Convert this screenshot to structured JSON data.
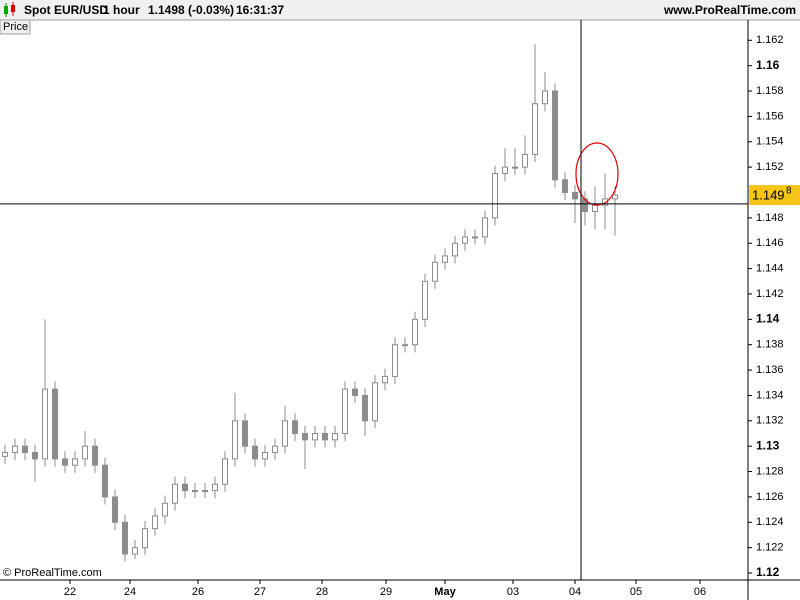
{
  "header": {
    "symbol": "Spot EUR/USD",
    "interval": "1 hour",
    "quote": "1.1498 (-0.03%)",
    "time": "16:31:37",
    "site": "www.ProRealTime.com"
  },
  "chart_data": {
    "type": "candlestick",
    "panel_label": "Price",
    "watermark": "© ProRealTime.com",
    "open": [
      1.1292,
      1.1295,
      1.13,
      1.1295,
      1.129,
      1.1345,
      1.129,
      1.1285,
      1.129,
      1.13,
      1.1285,
      1.126,
      1.124,
      1.1215,
      1.122,
      1.1235,
      1.1245,
      1.1255,
      1.127,
      1.1265,
      1.1265,
      1.1265,
      1.127,
      1.129,
      1.132,
      1.13,
      1.129,
      1.1295,
      1.13,
      1.132,
      1.131,
      1.1305,
      1.131,
      1.1305,
      1.131,
      1.1345,
      1.134,
      1.132,
      1.135,
      1.1355,
      1.138,
      1.138,
      1.14,
      1.143,
      1.1445,
      1.145,
      1.146,
      1.1465,
      1.1465,
      1.148,
      1.1515,
      1.152,
      1.152,
      1.153,
      1.157,
      1.158,
      1.151,
      1.15,
      1.1495,
      1.1485,
      1.149,
      1.1495
    ],
    "high": [
      1.1301,
      1.1306,
      1.1306,
      1.1301,
      1.14,
      1.1351,
      1.1296,
      1.1296,
      1.1312,
      1.1306,
      1.1291,
      1.1266,
      1.1246,
      1.1226,
      1.1241,
      1.1251,
      1.1261,
      1.1276,
      1.1276,
      1.1271,
      1.1271,
      1.1276,
      1.1296,
      1.1342,
      1.1326,
      1.1306,
      1.1301,
      1.1306,
      1.1332,
      1.1326,
      1.1316,
      1.1316,
      1.1316,
      1.1316,
      1.1351,
      1.1351,
      1.1346,
      1.1356,
      1.1361,
      1.1386,
      1.1386,
      1.1406,
      1.1436,
      1.1451,
      1.1456,
      1.1466,
      1.1471,
      1.1471,
      1.1486,
      1.1521,
      1.1535,
      1.1535,
      1.1545,
      1.1617,
      1.1595,
      1.1586,
      1.1516,
      1.1506,
      1.1501,
      1.1505,
      1.1515,
      1.1505
    ],
    "low": [
      1.1286,
      1.1289,
      1.1289,
      1.1272,
      1.1284,
      1.1284,
      1.1279,
      1.1279,
      1.1284,
      1.1279,
      1.1254,
      1.1234,
      1.1209,
      1.1211,
      1.1214,
      1.1229,
      1.1239,
      1.1249,
      1.1259,
      1.1259,
      1.1259,
      1.1259,
      1.1264,
      1.1284,
      1.1294,
      1.1284,
      1.1284,
      1.1289,
      1.1294,
      1.1304,
      1.1282,
      1.1299,
      1.1299,
      1.1299,
      1.1304,
      1.1334,
      1.1308,
      1.1314,
      1.1344,
      1.1349,
      1.1374,
      1.1374,
      1.1394,
      1.1424,
      1.1439,
      1.1444,
      1.1454,
      1.1459,
      1.1459,
      1.1474,
      1.1509,
      1.1514,
      1.1514,
      1.1524,
      1.1564,
      1.1504,
      1.1494,
      1.1476,
      1.1474,
      1.1471,
      1.1471,
      1.1466
    ],
    "close": [
      1.1295,
      1.13,
      1.1295,
      1.129,
      1.1345,
      1.129,
      1.1285,
      1.129,
      1.13,
      1.1285,
      1.126,
      1.124,
      1.1215,
      1.122,
      1.1235,
      1.1245,
      1.1255,
      1.127,
      1.1265,
      1.1265,
      1.1265,
      1.127,
      1.129,
      1.132,
      1.13,
      1.129,
      1.1295,
      1.13,
      1.132,
      1.131,
      1.1305,
      1.131,
      1.1305,
      1.131,
      1.1345,
      1.134,
      1.132,
      1.135,
      1.1355,
      1.138,
      1.138,
      1.14,
      1.143,
      1.1445,
      1.145,
      1.146,
      1.1465,
      1.1465,
      1.148,
      1.1515,
      1.152,
      1.152,
      1.153,
      1.157,
      1.158,
      1.151,
      1.15,
      1.1495,
      1.1485,
      1.149,
      1.1495,
      1.1498
    ],
    "xlim": [
      -0.5,
      74.3
    ],
    "xticks": [
      {
        "value": 6.5,
        "label": "22"
      },
      {
        "value": 12.5,
        "label": "24"
      },
      {
        "value": 19.3,
        "label": "26"
      },
      {
        "value": 25.5,
        "label": "27"
      },
      {
        "value": 31.7,
        "label": "28"
      },
      {
        "value": 38.1,
        "label": "29"
      },
      {
        "value": 44,
        "label": "May"
      },
      {
        "value": 50.8,
        "label": "03"
      },
      {
        "value": 57,
        "label": "04"
      },
      {
        "value": 63.1,
        "label": "05"
      },
      {
        "value": 69.5,
        "label": "06"
      }
    ],
    "ylim": [
      1.11945,
      1.1636
    ],
    "yticks": [
      1.12,
      1.122,
      1.124,
      1.126,
      1.128,
      1.13,
      1.132,
      1.134,
      1.136,
      1.138,
      1.14,
      1.142,
      1.144,
      1.146,
      1.148,
      1.152,
      1.154,
      1.156,
      1.158,
      1.16,
      1.162
    ],
    "last_price": {
      "value": 1.1498,
      "label": "1.149",
      "label_sup": "8"
    },
    "crosshair": {
      "x": 57.6,
      "y": 1.1491
    },
    "color": "#8c8c8c"
  }
}
